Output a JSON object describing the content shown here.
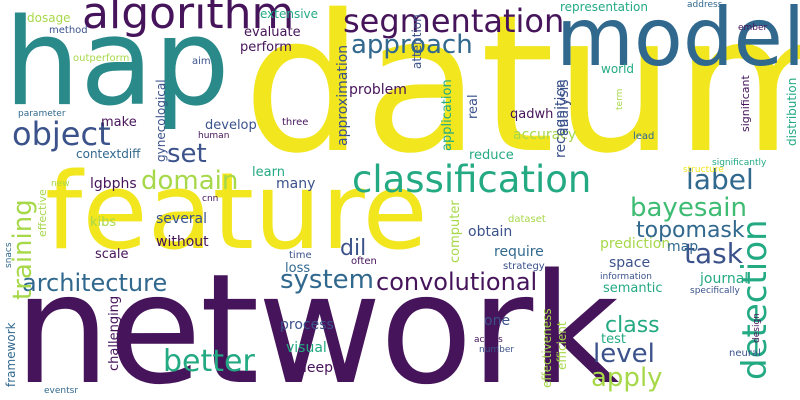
{
  "palette": {
    "yellow": "#f2e61f",
    "teal": "#2a8a8a",
    "green": "#3fbc73",
    "purple": "#46145a",
    "navy": "#3b528b",
    "lime": "#a7d84a",
    "blue": "#31688e",
    "mint": "#24aa83"
  },
  "words": {
    "datum": "datum",
    "network": "network",
    "feature": "feature",
    "hap": "hap",
    "model": "model",
    "algorithm": "algorithm",
    "segmentation": "segmentation",
    "approach": "approach",
    "object": "object",
    "classification": "classification",
    "set": "set",
    "domain": "domain",
    "label": "label",
    "bayesain": "bayesain",
    "topomask": "topomask",
    "task": "task",
    "detection": "detection",
    "training": "training",
    "architecture": "architecture",
    "system": "system",
    "convolutional": "convolutional",
    "level": "level",
    "better": "better",
    "apply": "apply",
    "class": "class",
    "dil": "dil",
    "recognition": "recognition",
    "analysis": "analysis",
    "accuracy": "accuracy",
    "application": "application",
    "real": "real",
    "qadwh": "qadwh",
    "reduce": "reduce",
    "obtain": "obtain",
    "require": "require",
    "prediction": "prediction",
    "map": "map",
    "space": "space",
    "journal": "journal",
    "semantic": "semantic",
    "test": "test",
    "one": "one",
    "visual": "visual",
    "deep": "deep",
    "process": "process",
    "loss": "loss",
    "time": "time",
    "strategy": "strategy",
    "often": "often",
    "computer": "computer",
    "dataset": "dataset",
    "several": "several",
    "without": "without",
    "scale": "scale",
    "kibs": "kibs",
    "cnn": "cnn",
    "many": "many",
    "learn": "learn",
    "lgbphs": "lgbphs",
    "contextdiff": "contextdiff",
    "make": "make",
    "develop": "develop",
    "gynecological": "gynecological",
    "three": "three",
    "human": "human",
    "problem": "problem",
    "approximation": "approximation",
    "attention": "attention",
    "perform": "perform",
    "evaluate": "evaluate",
    "extensive": "extensive",
    "dosage": "dosage",
    "method": "method",
    "aim": "aim",
    "outperform": "outperform",
    "parameter": "parameter",
    "representation": "representation",
    "address": "address",
    "ember": "ember",
    "world": "world",
    "significant": "significant",
    "distribution": "distribution",
    "term": "term",
    "lead": "lead",
    "significantly": "significantly",
    "structure": "structure",
    "information": "information",
    "specifically": "specifically",
    "design": "design",
    "neural": "neural",
    "number": "number",
    "across": "across",
    "efficient": "efficient",
    "effectiveness": "effectiveness",
    "challenging": "challenging",
    "framework": "framework",
    "eventsr": "eventsr",
    "snacs": "snacs",
    "effective": "effective",
    "new": "new"
  }
}
